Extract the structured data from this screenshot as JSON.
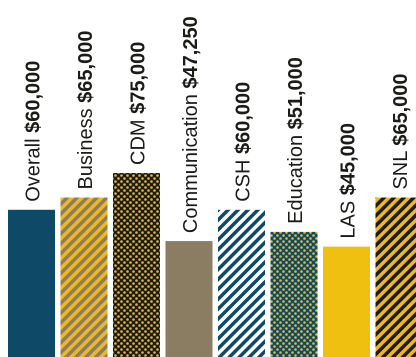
{
  "chart_data": {
    "type": "bar",
    "title": "",
    "xlabel": "",
    "ylabel": "",
    "ylim": [
      0,
      75000
    ],
    "grid": false,
    "legend": "none",
    "value_prefix": "$",
    "categories": [
      "Overall",
      "Business",
      "CDM",
      "Communication",
      "CSH",
      "Education",
      "LAS",
      "SNL"
    ],
    "values": [
      60000,
      65000,
      75000,
      47250,
      60000,
      51000,
      45000,
      65000
    ],
    "value_labels": [
      "$60,000",
      "$65,000",
      "$75,000",
      "$47,250",
      "$60,000",
      "$51,000",
      "$45,000",
      "$65,000"
    ],
    "fills": [
      {
        "pattern": "solid",
        "color": "#0e4a67"
      },
      {
        "pattern": "diagonal-stripes",
        "color": "#f0b81f",
        "color2": "#8b7d62"
      },
      {
        "pattern": "dots",
        "color": "#1b1c17",
        "color2": "#f0b81f"
      },
      {
        "pattern": "solid",
        "color": "#8b7d62"
      },
      {
        "pattern": "diagonal-stripes",
        "color": "#0e4a67",
        "color2": "#ffffff"
      },
      {
        "pattern": "dots",
        "color": "#0e4a67",
        "color2": "#f0b81f"
      },
      {
        "pattern": "solid",
        "color": "#f0c011"
      },
      {
        "pattern": "diagonal-stripes",
        "color": "#f0b81f",
        "color2": "#1b1c17"
      }
    ]
  }
}
